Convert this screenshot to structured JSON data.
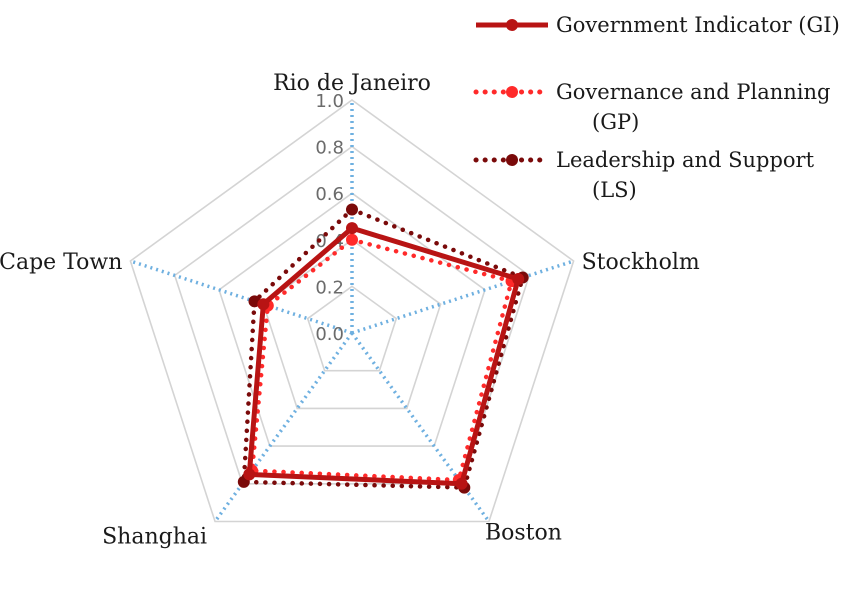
{
  "chart_data": {
    "type": "radar",
    "categories": [
      "Rio de Janeiro",
      "Stockholm",
      "Boston",
      "Shanghai",
      "Cape Town"
    ],
    "rlim": [
      0.0,
      1.0
    ],
    "ticks": [
      "0.0",
      "0.2",
      "0.4",
      "0.6",
      "0.8",
      "1.0"
    ],
    "grid": true,
    "legend_position": "top-right",
    "series": [
      {
        "name": "Government Indicator (GI)",
        "name_lines": [
          "Government Indicator (GI)"
        ],
        "values": [
          0.45,
          0.75,
          0.8,
          0.75,
          0.4
        ],
        "color": "#b81414",
        "style": "solid"
      },
      {
        "name": "Governance and Planning (GP)",
        "name_lines": [
          "Governance and Planning",
          "(GP)"
        ],
        "values": [
          0.4,
          0.72,
          0.78,
          0.73,
          0.38
        ],
        "color": "#ff2a2a",
        "style": "dotted"
      },
      {
        "name": "Leadership and Support (LS)",
        "name_lines": [
          "Leadership and Support",
          "(LS)"
        ],
        "values": [
          0.53,
          0.77,
          0.82,
          0.79,
          0.44
        ],
        "color": "#7a0a0a",
        "style": "dotted"
      }
    ]
  },
  "colors": {
    "grid": "#d4d4d4",
    "spoke": "#6fb0e0"
  }
}
